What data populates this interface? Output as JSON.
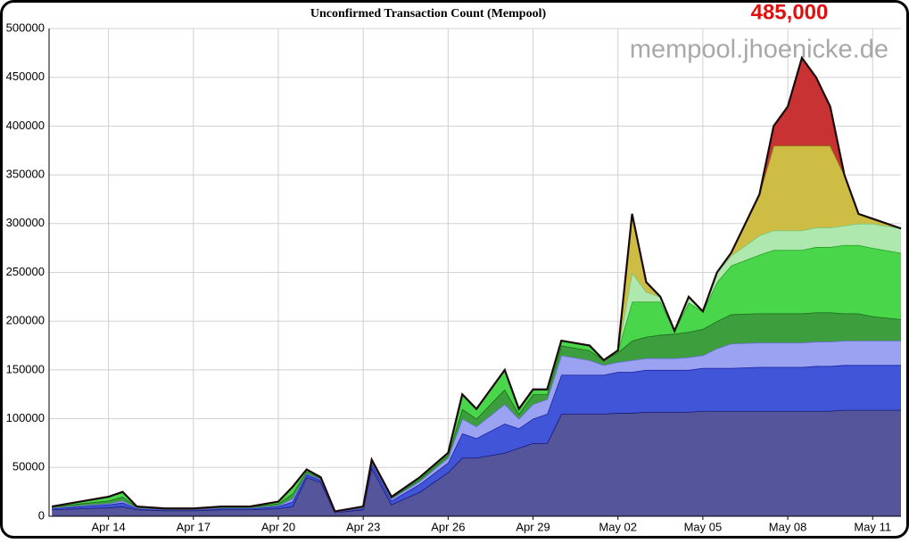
{
  "chart_data": {
    "type": "stacked-area",
    "title": "Unconfirmed Transaction Count (Mempool)",
    "annotation": "485,000",
    "watermark": "mempool.jhoenicke.de",
    "x": [
      12,
      13,
      14,
      14.5,
      15,
      16,
      17,
      18,
      19,
      20,
      20.5,
      21,
      21.5,
      22,
      23,
      23.3,
      24,
      25,
      26,
      26.5,
      27,
      28,
      28.5,
      29,
      29.5,
      30,
      31,
      31.5,
      32,
      32.5,
      33,
      33.5,
      34,
      34.5,
      35,
      35.5,
      36,
      37,
      37.5,
      38,
      38.5,
      39,
      39.5,
      40,
      40.5,
      41,
      42
    ],
    "xlim": [
      11.9,
      42
    ],
    "xticks": [
      {
        "value": 14,
        "label": "Apr 14"
      },
      {
        "value": 17,
        "label": "Apr 17"
      },
      {
        "value": 20,
        "label": "Apr 20"
      },
      {
        "value": 23,
        "label": "Apr 23"
      },
      {
        "value": 26,
        "label": "Apr 26"
      },
      {
        "value": 29,
        "label": "Apr 29"
      },
      {
        "value": 32,
        "label": "May 02"
      },
      {
        "value": 35,
        "label": "May 05"
      },
      {
        "value": 38,
        "label": "May 08"
      },
      {
        "value": 41,
        "label": "May 11"
      }
    ],
    "ylim": [
      0,
      500000
    ],
    "yticks": [
      0,
      50000,
      100000,
      150000,
      200000,
      250000,
      300000,
      350000,
      400000,
      450000,
      500000
    ],
    "grid": true,
    "series": [
      {
        "color": "#55559c",
        "line": "#1a1a70",
        "values": [
          7000,
          8000,
          9000,
          10000,
          7000,
          6000,
          6000,
          7000,
          7000,
          8000,
          10000,
          40000,
          35000,
          4000,
          7000,
          50000,
          12000,
          25000,
          45000,
          60000,
          60000,
          65000,
          70000,
          75000,
          75000,
          105000,
          105000,
          105000,
          106000,
          106000,
          107000,
          107000,
          107000,
          107000,
          108000,
          108000,
          108000,
          108000,
          108000,
          108000,
          108000,
          108000,
          108000,
          109000,
          109000,
          109000,
          109000
        ]
      },
      {
        "color": "#4055d8",
        "line": "#1a22a0",
        "values": [
          1000,
          2000,
          3000,
          4000,
          1000,
          1000,
          1000,
          1000,
          1000,
          2000,
          5000,
          3000,
          2000,
          500,
          1000,
          4000,
          4000,
          8000,
          10000,
          25000,
          20000,
          30000,
          20000,
          25000,
          30000,
          40000,
          40000,
          40000,
          42000,
          42000,
          43000,
          43000,
          43000,
          43000,
          44000,
          44000,
          44000,
          45000,
          45000,
          45000,
          45000,
          46000,
          46000,
          46000,
          46000,
          46000,
          46000
        ]
      },
      {
        "color": "#9ca2f2",
        "line": "#6a70d8",
        "values": [
          500,
          1000,
          1000,
          2000,
          500,
          0,
          0,
          500,
          500,
          1000,
          3000,
          1000,
          1000,
          0,
          500,
          2000,
          2000,
          3000,
          5000,
          15000,
          12000,
          20000,
          10000,
          15000,
          15000,
          20000,
          15000,
          10000,
          10000,
          12000,
          12000,
          12000,
          12000,
          13000,
          13000,
          20000,
          25000,
          25000,
          25000,
          25000,
          25000,
          25000,
          25000,
          25000,
          25000,
          25000,
          25000
        ]
      },
      {
        "color": "#3c9e3c",
        "line": "#1a6a1a",
        "values": [
          1000,
          2000,
          3000,
          4000,
          1000,
          500,
          500,
          1000,
          1000,
          2000,
          5000,
          2000,
          1000,
          500,
          1000,
          1000,
          1000,
          2000,
          3000,
          10000,
          8000,
          15000,
          5000,
          10000,
          5000,
          10000,
          10000,
          5000,
          10000,
          20000,
          22000,
          24000,
          25000,
          26000,
          27000,
          28000,
          30000,
          30000,
          30000,
          30000,
          30000,
          30000,
          30000,
          28000,
          28000,
          25000,
          22000
        ]
      },
      {
        "color": "#4ad64a",
        "line": "#22a022",
        "values": [
          500,
          2000,
          4000,
          5000,
          500,
          500,
          500,
          500,
          500,
          2000,
          7000,
          2000,
          1000,
          0,
          500,
          1000,
          1000,
          2000,
          2000,
          15000,
          10000,
          20000,
          5000,
          5000,
          5000,
          5000,
          5000,
          0,
          2000,
          40000,
          36000,
          34000,
          3000,
          30000,
          18000,
          40000,
          50000,
          60000,
          65000,
          65000,
          65000,
          67000,
          67000,
          70000,
          70000,
          70000,
          68000
        ]
      },
      {
        "color": "#aee8ae",
        "line": "#78c878",
        "values": [
          0,
          0,
          0,
          0,
          0,
          0,
          0,
          0,
          0,
          0,
          0,
          0,
          0,
          0,
          0,
          0,
          0,
          0,
          0,
          0,
          0,
          0,
          0,
          0,
          0,
          0,
          0,
          0,
          0,
          30000,
          10000,
          5000,
          0,
          6000,
          0,
          10000,
          10000,
          20000,
          20000,
          20000,
          20000,
          20000,
          20000,
          20000,
          22000,
          25000,
          25000
        ]
      },
      {
        "color": "#cdbd45",
        "line": "#8a7e10",
        "values": [
          0,
          0,
          0,
          0,
          0,
          0,
          0,
          0,
          0,
          0,
          0,
          0,
          0,
          0,
          0,
          0,
          0,
          0,
          0,
          0,
          0,
          0,
          0,
          0,
          0,
          0,
          0,
          0,
          0,
          60000,
          10000,
          0,
          0,
          0,
          0,
          0,
          3000,
          42000,
          87000,
          87000,
          87000,
          84000,
          84000,
          52000,
          10000,
          5000,
          0
        ]
      },
      {
        "color": "#c83232",
        "line": "#1a0a0a",
        "values": [
          0,
          0,
          0,
          0,
          0,
          0,
          0,
          0,
          0,
          0,
          0,
          0,
          0,
          0,
          0,
          0,
          0,
          0,
          0,
          0,
          0,
          0,
          0,
          0,
          0,
          0,
          0,
          0,
          0,
          0,
          0,
          0,
          0,
          0,
          0,
          0,
          0,
          0,
          20000,
          40000,
          90000,
          70000,
          40000,
          0,
          0,
          0,
          0
        ]
      }
    ]
  }
}
